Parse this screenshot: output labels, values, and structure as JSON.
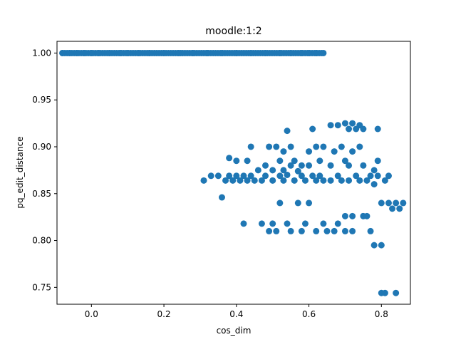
{
  "chart_data": {
    "type": "scatter",
    "title": "moodle:1:2",
    "xlabel": "cos_dim",
    "ylabel": "pq_edit_distance",
    "xlim": [
      -0.095,
      0.88
    ],
    "ylim": [
      0.732,
      1.0125
    ],
    "xticks": [
      0.0,
      0.2,
      0.4,
      0.6,
      0.8
    ],
    "xtick_labels": [
      "0.0",
      "0.2",
      "0.4",
      "0.6",
      "0.8"
    ],
    "yticks": [
      0.75,
      0.8,
      0.85,
      0.9,
      0.95,
      1.0
    ],
    "ytick_labels": [
      "0.75",
      "0.80",
      "0.85",
      "0.90",
      "0.95",
      "1.00"
    ],
    "grid": false,
    "legend": "none",
    "marker_color": "#1f77b4",
    "series": [
      {
        "top_band_x_range": [
          -0.08,
          0.64
        ],
        "top_band_y": 1.0,
        "points": [
          [
            -0.08,
            1.0
          ],
          [
            -0.06,
            1.0
          ],
          [
            -0.04,
            1.0
          ],
          [
            -0.02,
            1.0
          ],
          [
            0.0,
            1.0
          ],
          [
            0.02,
            1.0
          ],
          [
            0.05,
            1.0
          ],
          [
            0.08,
            1.0
          ],
          [
            0.1,
            1.0
          ],
          [
            0.13,
            1.0
          ],
          [
            0.16,
            1.0
          ],
          [
            0.2,
            1.0
          ],
          [
            0.24,
            1.0
          ],
          [
            0.28,
            1.0
          ],
          [
            0.32,
            1.0
          ],
          [
            0.36,
            1.0
          ],
          [
            0.4,
            1.0
          ],
          [
            0.44,
            1.0
          ],
          [
            0.48,
            1.0
          ],
          [
            0.52,
            1.0
          ],
          [
            0.55,
            1.0
          ],
          [
            0.58,
            1.0
          ],
          [
            0.6,
            1.0
          ],
          [
            0.62,
            1.0
          ],
          [
            0.64,
            1.0
          ],
          [
            0.31,
            0.864
          ],
          [
            0.33,
            0.869
          ],
          [
            0.35,
            0.869
          ],
          [
            0.36,
            0.846
          ],
          [
            0.37,
            0.864
          ],
          [
            0.38,
            0.869
          ],
          [
            0.38,
            0.888
          ],
          [
            0.39,
            0.864
          ],
          [
            0.4,
            0.869
          ],
          [
            0.4,
            0.885
          ],
          [
            0.41,
            0.864
          ],
          [
            0.42,
            0.818
          ],
          [
            0.42,
            0.869
          ],
          [
            0.43,
            0.864
          ],
          [
            0.43,
            0.885
          ],
          [
            0.44,
            0.869
          ],
          [
            0.44,
            0.9
          ],
          [
            0.45,
            0.864
          ],
          [
            0.46,
            0.875
          ],
          [
            0.47,
            0.864
          ],
          [
            0.47,
            0.818
          ],
          [
            0.48,
            0.869
          ],
          [
            0.48,
            0.88
          ],
          [
            0.49,
            0.9
          ],
          [
            0.49,
            0.81
          ],
          [
            0.5,
            0.864
          ],
          [
            0.5,
            0.875
          ],
          [
            0.5,
            0.818
          ],
          [
            0.51,
            0.9
          ],
          [
            0.51,
            0.81
          ],
          [
            0.52,
            0.869
          ],
          [
            0.52,
            0.885
          ],
          [
            0.52,
            0.84
          ],
          [
            0.53,
            0.864
          ],
          [
            0.53,
            0.875
          ],
          [
            0.53,
            0.895
          ],
          [
            0.54,
            0.917
          ],
          [
            0.54,
            0.818
          ],
          [
            0.54,
            0.87
          ],
          [
            0.55,
            0.88
          ],
          [
            0.55,
            0.9
          ],
          [
            0.55,
            0.81
          ],
          [
            0.56,
            0.864
          ],
          [
            0.56,
            0.885
          ],
          [
            0.57,
            0.874
          ],
          [
            0.57,
            0.84
          ],
          [
            0.58,
            0.869
          ],
          [
            0.58,
            0.88
          ],
          [
            0.58,
            0.81
          ],
          [
            0.59,
            0.864
          ],
          [
            0.59,
            0.818
          ],
          [
            0.6,
            0.88
          ],
          [
            0.6,
            0.895
          ],
          [
            0.6,
            0.84
          ],
          [
            0.61,
            0.919
          ],
          [
            0.61,
            0.869
          ],
          [
            0.62,
            0.9
          ],
          [
            0.62,
            0.864
          ],
          [
            0.62,
            0.81
          ],
          [
            0.63,
            0.885
          ],
          [
            0.63,
            0.869
          ],
          [
            0.64,
            0.9
          ],
          [
            0.64,
            0.818
          ],
          [
            0.64,
            0.864
          ],
          [
            0.65,
            0.81
          ],
          [
            0.66,
            0.923
          ],
          [
            0.66,
            0.88
          ],
          [
            0.66,
            0.864
          ],
          [
            0.67,
            0.895
          ],
          [
            0.67,
            0.81
          ],
          [
            0.68,
            0.923
          ],
          [
            0.68,
            0.869
          ],
          [
            0.68,
            0.818
          ],
          [
            0.69,
            0.9
          ],
          [
            0.69,
            0.864
          ],
          [
            0.7,
            0.925
          ],
          [
            0.7,
            0.885
          ],
          [
            0.7,
            0.826
          ],
          [
            0.7,
            0.81
          ],
          [
            0.71,
            0.919
          ],
          [
            0.71,
            0.88
          ],
          [
            0.71,
            0.864
          ],
          [
            0.72,
            0.925
          ],
          [
            0.72,
            0.895
          ],
          [
            0.72,
            0.826
          ],
          [
            0.72,
            0.81
          ],
          [
            0.73,
            0.919
          ],
          [
            0.73,
            0.869
          ],
          [
            0.74,
            0.923
          ],
          [
            0.74,
            0.9
          ],
          [
            0.74,
            0.864
          ],
          [
            0.75,
            0.919
          ],
          [
            0.75,
            0.88
          ],
          [
            0.75,
            0.826
          ],
          [
            0.76,
            0.864
          ],
          [
            0.76,
            0.826
          ],
          [
            0.77,
            0.869
          ],
          [
            0.77,
            0.81
          ],
          [
            0.78,
            0.86
          ],
          [
            0.78,
            0.875
          ],
          [
            0.78,
            0.795
          ],
          [
            0.79,
            0.919
          ],
          [
            0.79,
            0.885
          ],
          [
            0.79,
            0.869
          ],
          [
            0.8,
            0.84
          ],
          [
            0.8,
            0.744
          ],
          [
            0.8,
            0.795
          ],
          [
            0.81,
            0.864
          ],
          [
            0.81,
            0.744
          ],
          [
            0.82,
            0.869
          ],
          [
            0.82,
            0.84
          ],
          [
            0.83,
            0.834
          ],
          [
            0.84,
            0.744
          ],
          [
            0.84,
            0.84
          ],
          [
            0.85,
            0.834
          ],
          [
            0.86,
            0.84
          ]
        ]
      }
    ]
  }
}
